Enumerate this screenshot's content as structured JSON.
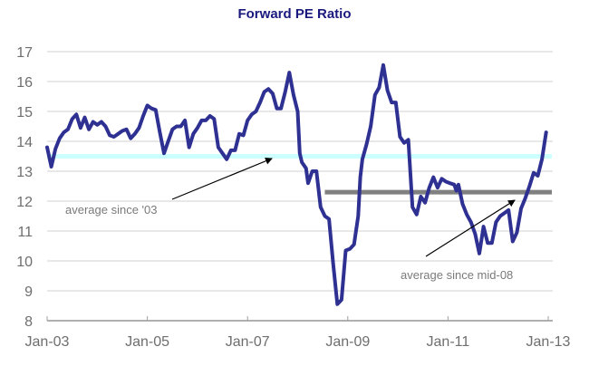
{
  "chart_data": {
    "type": "line",
    "title": "Forward PE Ratio",
    "xlabel": "",
    "ylabel": "",
    "ylim": [
      8,
      17
    ],
    "yticks": [
      8,
      9,
      10,
      11,
      12,
      13,
      14,
      15,
      16,
      17
    ],
    "xlim_months": [
      0,
      120
    ],
    "xticks": [
      {
        "month": 0,
        "label": "Jan-03"
      },
      {
        "month": 24,
        "label": "Jan-05"
      },
      {
        "month": 48,
        "label": "Jan-07"
      },
      {
        "month": 72,
        "label": "Jan-09"
      },
      {
        "month": 96,
        "label": "Jan-11"
      },
      {
        "month": 120,
        "label": "Jan-13"
      }
    ],
    "grid": true,
    "series": [
      {
        "name": "Forward PE",
        "color": "#2e3192",
        "x_unit": "months since Jan-03",
        "points": [
          [
            0,
            13.8
          ],
          [
            1,
            13.15
          ],
          [
            2,
            13.75
          ],
          [
            3,
            14.1
          ],
          [
            4,
            14.3
          ],
          [
            5,
            14.4
          ],
          [
            6,
            14.75
          ],
          [
            7,
            14.9
          ],
          [
            8,
            14.45
          ],
          [
            9,
            14.8
          ],
          [
            10,
            14.4
          ],
          [
            11,
            14.65
          ],
          [
            12,
            14.55
          ],
          [
            13,
            14.65
          ],
          [
            14,
            14.5
          ],
          [
            15,
            14.2
          ],
          [
            16,
            14.15
          ],
          [
            17,
            14.25
          ],
          [
            18,
            14.35
          ],
          [
            19,
            14.4
          ],
          [
            20,
            14.1
          ],
          [
            21,
            14.25
          ],
          [
            22,
            14.45
          ],
          [
            23,
            14.85
          ],
          [
            24,
            15.2
          ],
          [
            25,
            15.1
          ],
          [
            26,
            15.05
          ],
          [
            27,
            14.3
          ],
          [
            28,
            13.6
          ],
          [
            29,
            14.0
          ],
          [
            30,
            14.4
          ],
          [
            31,
            14.5
          ],
          [
            32,
            14.5
          ],
          [
            33,
            14.7
          ],
          [
            34,
            13.8
          ],
          [
            35,
            14.25
          ],
          [
            36,
            14.45
          ],
          [
            37,
            14.7
          ],
          [
            38,
            14.7
          ],
          [
            39,
            14.85
          ],
          [
            40,
            14.75
          ],
          [
            41,
            13.8
          ],
          [
            42,
            13.6
          ],
          [
            43,
            13.4
          ],
          [
            44,
            13.7
          ],
          [
            45,
            13.7
          ],
          [
            46,
            14.25
          ],
          [
            47,
            14.2
          ],
          [
            48,
            14.7
          ],
          [
            49,
            14.9
          ],
          [
            50,
            15.0
          ],
          [
            51,
            15.3
          ],
          [
            52,
            15.65
          ],
          [
            53,
            15.75
          ],
          [
            54,
            15.6
          ],
          [
            55,
            15.1
          ],
          [
            56,
            15.1
          ],
          [
            57,
            15.65
          ],
          [
            58,
            16.3
          ],
          [
            59,
            15.55
          ],
          [
            60,
            15.0
          ],
          [
            60.5,
            13.6
          ],
          [
            61,
            13.3
          ],
          [
            62,
            13.1
          ],
          [
            62.5,
            12.6
          ],
          [
            63.5,
            13.0
          ],
          [
            64.5,
            13.0
          ],
          [
            65.5,
            11.8
          ],
          [
            66.5,
            11.5
          ],
          [
            67.5,
            11.4
          ],
          [
            68.5,
            9.9
          ],
          [
            69.5,
            8.55
          ],
          [
            70.5,
            8.7
          ],
          [
            71.5,
            10.35
          ],
          [
            72.5,
            10.4
          ],
          [
            73.5,
            10.55
          ],
          [
            74.5,
            11.5
          ],
          [
            75,
            12.8
          ],
          [
            75.5,
            13.4
          ],
          [
            76.5,
            13.9
          ],
          [
            77.5,
            14.5
          ],
          [
            78.5,
            15.55
          ],
          [
            79.5,
            15.8
          ],
          [
            80.5,
            16.55
          ],
          [
            81.5,
            15.7
          ],
          [
            82.5,
            15.3
          ],
          [
            83.5,
            15.3
          ],
          [
            84.5,
            14.15
          ],
          [
            85.5,
            13.95
          ],
          [
            86.5,
            14.05
          ],
          [
            87.5,
            11.8
          ],
          [
            88.5,
            11.55
          ],
          [
            89.5,
            12.15
          ],
          [
            90.5,
            11.95
          ],
          [
            91.5,
            12.45
          ],
          [
            92.5,
            12.8
          ],
          [
            93.5,
            12.45
          ],
          [
            94.5,
            12.75
          ],
          [
            95.5,
            12.65
          ],
          [
            96.5,
            12.6
          ],
          [
            97.5,
            12.55
          ],
          [
            98,
            12.35
          ],
          [
            98.5,
            12.55
          ],
          [
            99.5,
            11.9
          ],
          [
            100.5,
            11.55
          ],
          [
            101.5,
            11.3
          ],
          [
            102.5,
            10.9
          ],
          [
            103.5,
            10.25
          ],
          [
            104.5,
            11.15
          ],
          [
            105.5,
            10.6
          ],
          [
            106.5,
            10.6
          ],
          [
            107.5,
            11.3
          ],
          [
            108.5,
            11.5
          ],
          [
            109.5,
            11.6
          ],
          [
            110.5,
            11.7
          ],
          [
            111.5,
            10.65
          ],
          [
            112.5,
            10.95
          ],
          [
            113.5,
            11.75
          ],
          [
            114.5,
            12.1
          ],
          [
            115.5,
            12.5
          ],
          [
            116.5,
            12.95
          ],
          [
            117.5,
            12.85
          ],
          [
            118.5,
            13.4
          ],
          [
            119.5,
            14.3
          ]
        ]
      }
    ],
    "reference_lines": [
      {
        "name": "average since '03",
        "value": 13.5,
        "from_month": 0,
        "to_month": 120,
        "color": "#ccffff"
      },
      {
        "name": "average since mid-08",
        "value": 12.3,
        "from_month": 66.5,
        "to_month": 120,
        "color": "#808080"
      }
    ],
    "annotations": [
      {
        "text": "average since '03",
        "points_to": "average since '03"
      },
      {
        "text": "average since mid-08",
        "points_to": "average since mid-08"
      }
    ]
  }
}
